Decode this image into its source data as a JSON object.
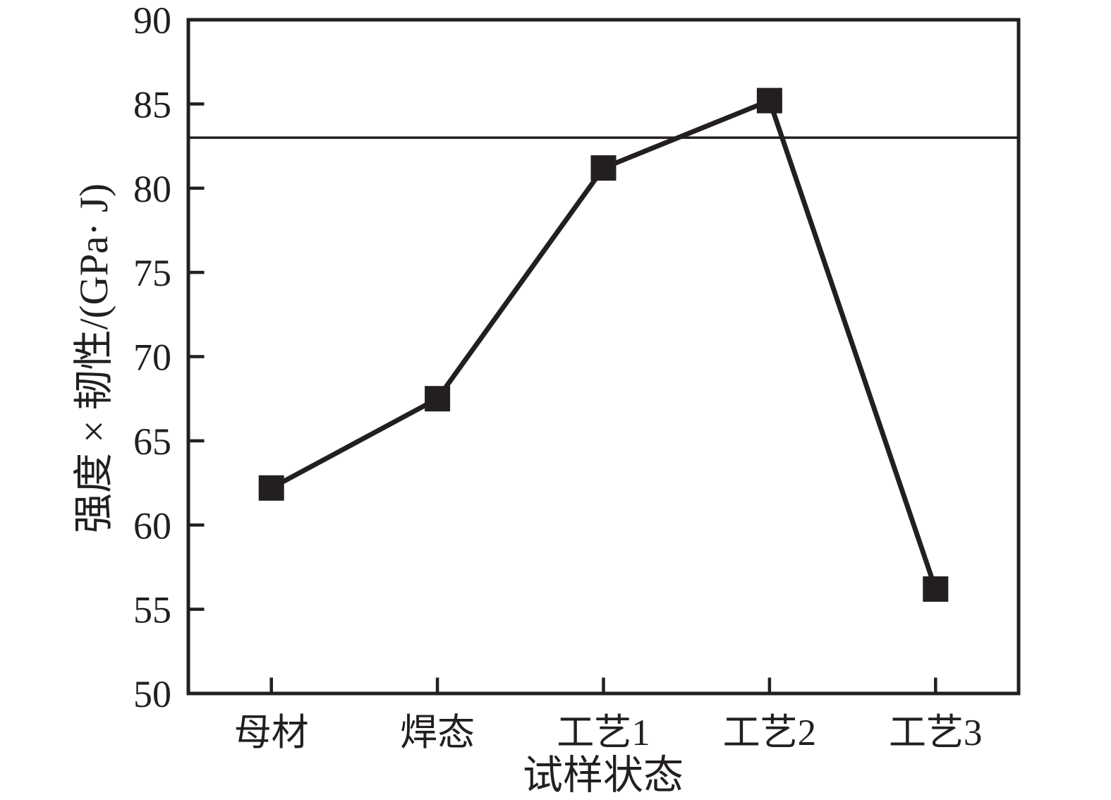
{
  "chart_data": {
    "type": "line",
    "title": "",
    "categories": [
      "母材",
      "焊态",
      "工艺1",
      "工艺2",
      "工艺3"
    ],
    "series": [
      {
        "name": "强度×韧性",
        "values": [
          62.2,
          67.5,
          81.2,
          85.2,
          56.2
        ],
        "marker": "square",
        "color": "#231f20"
      }
    ],
    "reference_line_y": 83,
    "xlabel": "试样状态",
    "ylabel": "强度 × 韧性/(GPa· J)",
    "ylim": [
      50,
      90
    ],
    "yticks": [
      50,
      55,
      60,
      65,
      70,
      75,
      80,
      85,
      90
    ],
    "grid": false,
    "legend": "none",
    "frame_color": "#231f20",
    "background": "#ffffff"
  }
}
